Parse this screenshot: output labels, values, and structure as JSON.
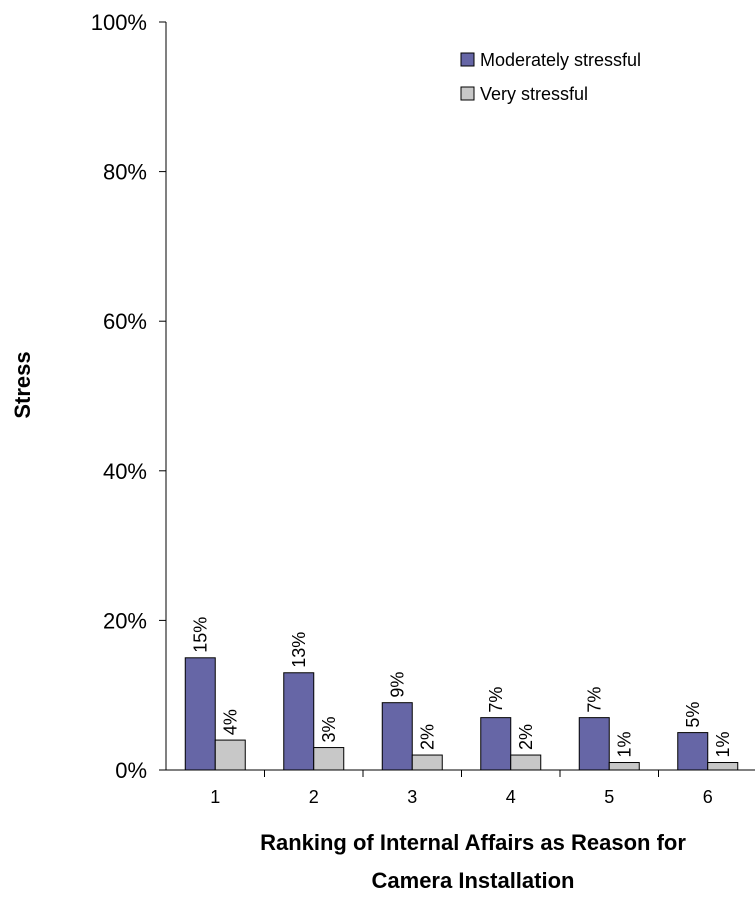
{
  "chart_data": {
    "type": "bar",
    "title": "",
    "xlabel_lines": [
      "Ranking of Internal Affairs as Reason for",
      "Camera Installation"
    ],
    "ylabel": "Stress",
    "categories": [
      "1",
      "2",
      "3",
      "4",
      "5",
      "6"
    ],
    "ylim": [
      0,
      100
    ],
    "yticks": [
      "0%",
      "20%",
      "40%",
      "60%",
      "80%",
      "100%"
    ],
    "grid": false,
    "legend_position": "top-right",
    "series": [
      {
        "name": "Moderately stressful",
        "color": "#6666a6",
        "values": [
          15,
          13,
          9,
          7,
          7,
          5
        ],
        "labels": [
          "15%",
          "13%",
          "9%",
          "7%",
          "7%",
          "5%"
        ]
      },
      {
        "name": "Very stressful",
        "color": "#c8c8c8",
        "values": [
          4,
          3,
          2,
          2,
          1,
          1
        ],
        "labels": [
          "4%",
          "3%",
          "2%",
          "2%",
          "1%",
          "1%"
        ]
      }
    ]
  }
}
